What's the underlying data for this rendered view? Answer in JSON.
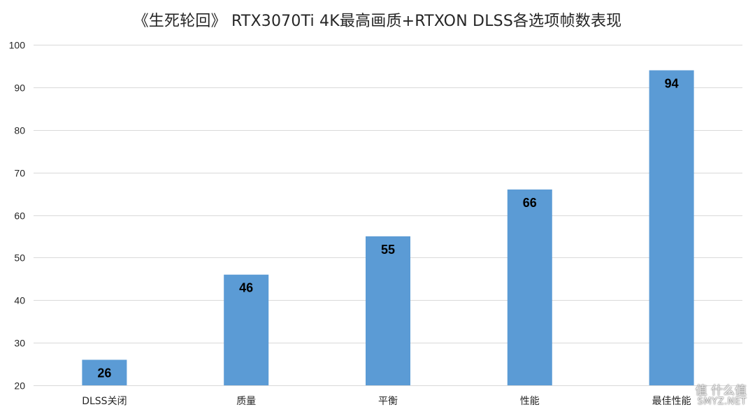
{
  "chart_data": {
    "type": "bar",
    "title": "《生死轮回》 RTX3070Ti 4K最高画质+RTXON DLSS各选项帧数表现",
    "categories": [
      "DLSS关闭",
      "质量",
      "平衡",
      "性能",
      "最佳性能"
    ],
    "values": [
      26,
      46,
      55,
      66,
      94
    ],
    "xlabel": "",
    "ylabel": "",
    "ylim": [
      20,
      100
    ],
    "yticks": [
      20,
      30,
      40,
      50,
      60,
      70,
      80,
      90,
      100
    ],
    "grid": true,
    "legend": "none",
    "bar_color": "#5b9bd5",
    "grid_color": "#d9d9d9",
    "data_labels": true
  },
  "watermark": {
    "top": "值 什么值",
    "bottom": "SMYZ.NET"
  }
}
